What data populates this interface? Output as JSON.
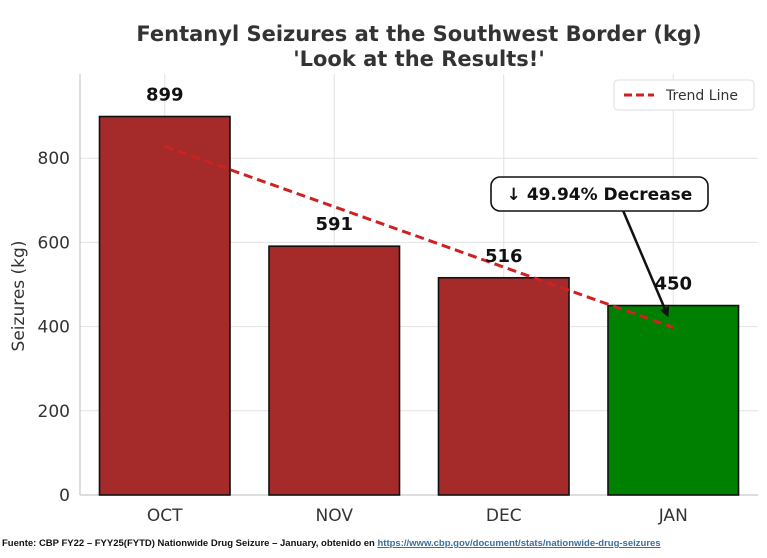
{
  "chart_data": {
    "type": "bar",
    "title": "Fentanyl Seizures at the Southwest Border (kg)",
    "subtitle": "'Look at the Results!'",
    "xlabel": "",
    "ylabel": "Seizures (kg)",
    "categories": [
      "OCT",
      "NOV",
      "DEC",
      "JAN"
    ],
    "values": [
      899,
      591,
      516,
      450
    ],
    "data_labels": [
      "899",
      "591",
      "516",
      "450"
    ],
    "bar_colors": [
      "#a52a2a",
      "#a52a2a",
      "#a52a2a",
      "#008000"
    ],
    "ylim": [
      0,
      1000
    ],
    "yticks": [
      0,
      200,
      400,
      600,
      800
    ],
    "ytick_labels": [
      "0",
      "200",
      "400",
      "600",
      "800"
    ],
    "grid": true,
    "legend": {
      "position": "top-right",
      "entries": [
        {
          "label": "Trend Line",
          "color": "#cc2222",
          "style": "dashed"
        }
      ]
    },
    "trend_line": {
      "from_category": "OCT",
      "to_category": "JAN",
      "start_value": 828,
      "end_value": 398,
      "color": "#cc2222"
    },
    "annotation": {
      "text": "↓ 49.94% Decrease",
      "points_to_category": "JAN",
      "points_to_value": 450
    }
  },
  "footer": {
    "text": "Fuente: CBP FY22 – FYY25(FYTD) Nationwide Drug Seizure – January, obtenido en",
    "link": "https://www.cbp.gov/document/stats/nationwide-drug-seizures"
  }
}
